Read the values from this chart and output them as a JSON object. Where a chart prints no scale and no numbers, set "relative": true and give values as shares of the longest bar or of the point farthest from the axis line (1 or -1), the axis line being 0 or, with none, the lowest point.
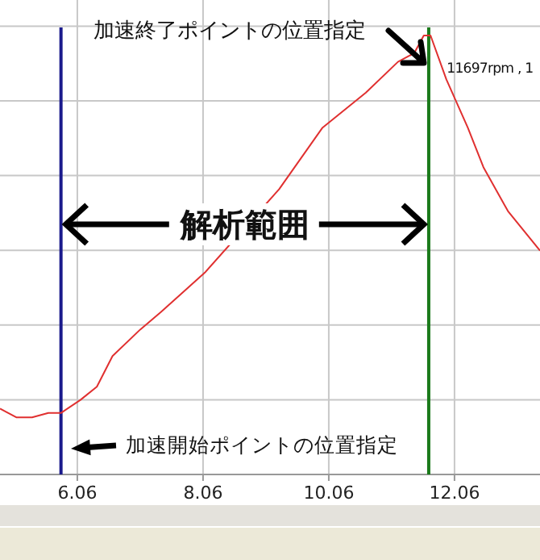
{
  "chart_data": {
    "type": "line",
    "relative": true,
    "grid": true,
    "marker": "none",
    "line_style": "solid",
    "tick_labels": "x",
    "xlim": [
      4.83,
      13.42
    ],
    "xticks": [
      6.06,
      8.06,
      10.06,
      12.06
    ],
    "x": [
      4.83,
      5.09,
      5.34,
      5.6,
      5.8,
      6.11,
      6.37,
      6.62,
      7.06,
      7.39,
      7.78,
      8.09,
      9.27,
      9.96,
      10.65,
      11.16,
      11.42,
      11.57,
      11.68,
      11.93,
      12.27,
      12.52,
      12.91,
      13.42
    ],
    "series": [
      {
        "color": "#e03030",
        "values": [
          0.15,
          0.13,
          0.13,
          0.14,
          0.14,
          0.17,
          0.2,
          0.27,
          0.33,
          0.37,
          0.42,
          0.46,
          0.65,
          0.79,
          0.87,
          0.94,
          0.96,
          1,
          1,
          0.9,
          0.79,
          0.7,
          0.6,
          0.51
        ]
      }
    ],
    "ref_lines": [
      {
        "axis": "x",
        "value": 5.8,
        "color": "#1a1a8c"
      },
      {
        "axis": "x",
        "value": 11.65,
        "color": "#1a7a1a"
      }
    ],
    "annotations": [
      "加速終了ポイントの位置指定",
      "解析範囲",
      "加速開始ポイントの位置指定",
      {
        "text": "11697rpm , 1",
        "x": 11.68,
        "y": 1
      }
    ]
  }
}
